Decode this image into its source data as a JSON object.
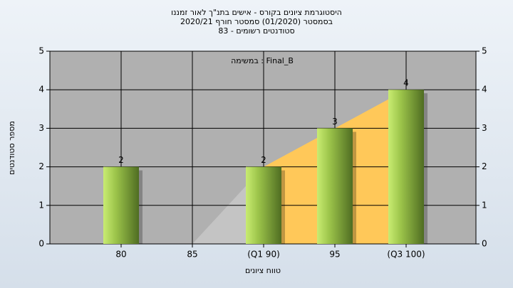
{
  "chart_data": {
    "type": "bar",
    "title": "היסטוגרמת ציונים בקורס - אישים בתנ\"ך לאור זמננו",
    "subtitle": "בסמסטר  (01/2020)  סמסטר חורף  2020/21",
    "subtitle2": "סטודנטים רשומים - 83",
    "annotation": "במשימה : Final_B",
    "x_label": "טווח ציונים",
    "y_label": "מספר סטודנטים",
    "categories": [
      "80",
      "85",
      "(Q1 90)",
      "95",
      "(Q3 100)"
    ],
    "values": [
      2,
      0,
      2,
      3,
      4
    ],
    "color": "#9cc44a",
    "areas": [
      {
        "color": "#c4c4c4",
        "values": [
          null,
          0,
          2,
          null,
          null
        ]
      },
      {
        "color": "#ffc859",
        "values": [
          null,
          null,
          2,
          3,
          4
        ]
      }
    ],
    "ylim": [
      0,
      5
    ],
    "yticks": [
      0,
      1,
      2,
      3,
      4,
      5
    ],
    "y2lim": [
      0,
      5
    ],
    "y2ticks": [
      0,
      1,
      2,
      3,
      4,
      5
    ],
    "grid": true
  }
}
